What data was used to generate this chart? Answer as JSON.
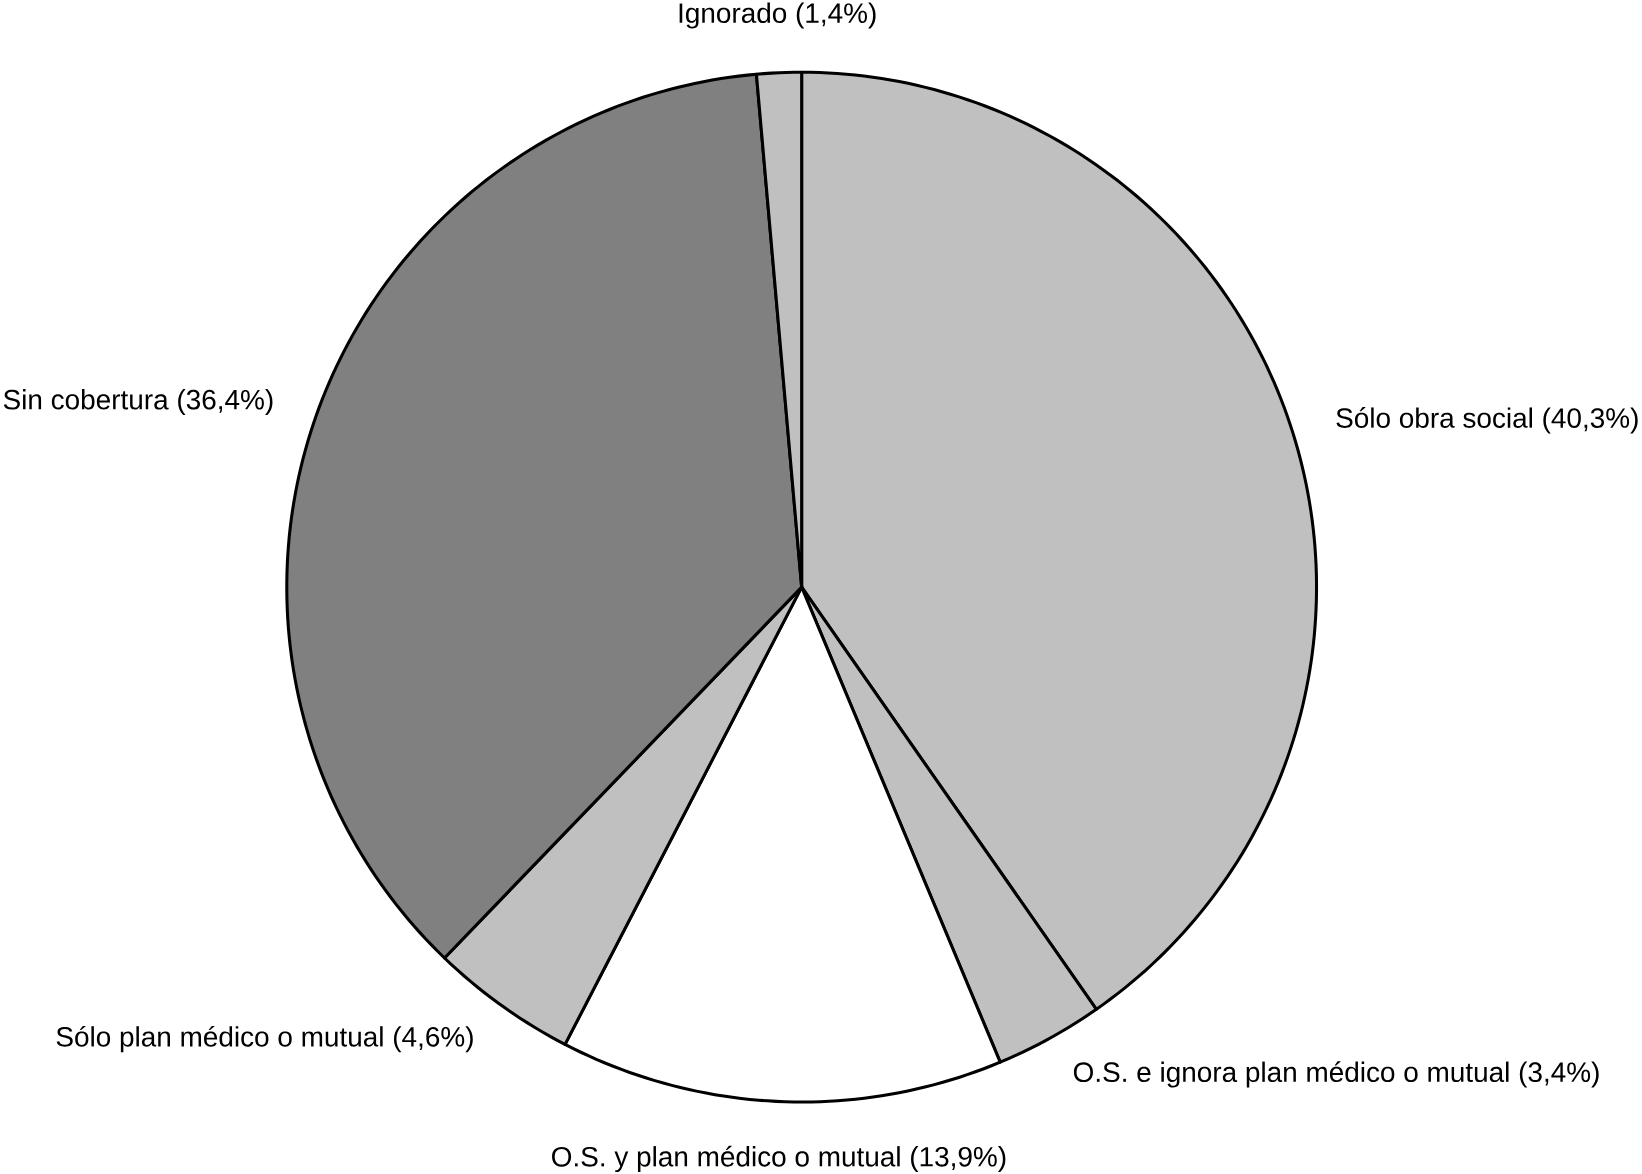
{
  "chart_data": {
    "type": "pie",
    "categories": [
      "Sólo obra social (40,3%)",
      "O.S. e ignora plan médico o mutual (3,4%)",
      "O.S. y plan médico o mutual (13,9%)",
      "Sólo plan médico o mutual (4,6%)",
      "Sin cobertura (36,4%)",
      "Ignorado (1,4%)"
    ],
    "values": [
      40.3,
      3.4,
      13.9,
      4.6,
      36.4,
      1.4
    ],
    "colors": [
      "#c0c0c0",
      "#c0c0c0",
      "#ffffff",
      "#c0c0c0",
      "#808080",
      "#c0c0c0"
    ]
  }
}
